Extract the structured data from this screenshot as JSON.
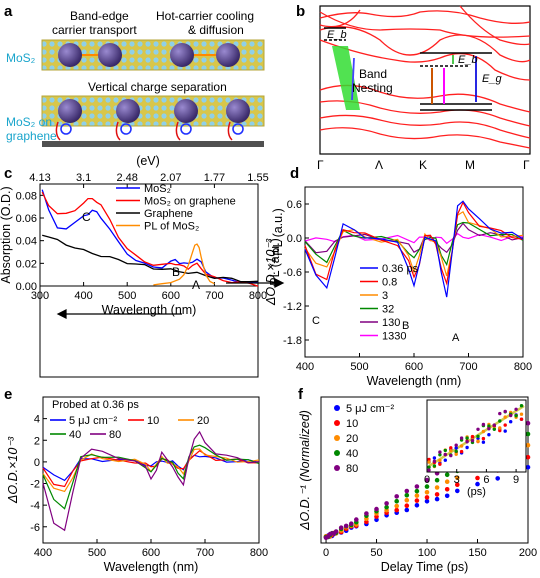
{
  "panels": {
    "a": {
      "letter": "a",
      "top_label_1_line1": "Band-edge",
      "top_label_1_line2": "carrier transport",
      "top_label_2_line1": "Hot-carrier cooling",
      "top_label_2_line2": "& diffusion",
      "side_label_1": "MoS₂",
      "middle_label": "Vertical charge separation",
      "side_label_2_line1": "MoS₂ on",
      "side_label_2_line2": "graphene"
    },
    "b": {
      "letter": "b",
      "nesting_line1": "Band",
      "nesting_line2": "Nesting",
      "eb": "E_b",
      "eg": "E_g",
      "kpoints": [
        "Γ",
        "Λ",
        "K",
        "M",
        "Γ"
      ]
    },
    "c": {
      "letter": "c",
      "annot_A": "A",
      "annot_B": "B",
      "annot_C": "C"
    },
    "d": {
      "letter": "d",
      "annot_A": "A",
      "annot_B": "B",
      "annot_C": "C"
    },
    "e": {
      "letter": "e",
      "probe_text": "Probed at 0.36 ps"
    },
    "f": {
      "letter": "f"
    }
  },
  "colors": {
    "red": "#ff0000",
    "blue": "#0000ff",
    "black": "#000000",
    "orange": "#ff8c00",
    "green": "#008800",
    "purple": "#800080",
    "magenta": "#ff00ff",
    "band_green": "#33dd33"
  },
  "chart_data": [
    {
      "type": "line",
      "id": "c",
      "xlabel": "Wavelength (nm)",
      "ylabel": "Absorption (O.D.)",
      "ylabel_right": "PL (a.u.)",
      "top_axis_label": "(eV)",
      "top_ticks": [
        "4.13",
        "3.1",
        "2.48",
        "2.07",
        "1.77",
        "1.55"
      ],
      "xlim": [
        300,
        800
      ],
      "ylim": [
        0,
        0.09
      ],
      "xticks": [
        300,
        400,
        500,
        600,
        700,
        800
      ],
      "yticks": [
        0.0,
        0.02,
        0.04,
        0.06,
        0.08
      ],
      "ytick_labels": [
        "0.00",
        "0.02",
        "0.04",
        "0.06",
        "0.08"
      ],
      "legend": "top-right",
      "series": [
        {
          "name": "MoS₂",
          "color": "#0000ff",
          "x": [
            305,
            320,
            340,
            360,
            380,
            400,
            410,
            420,
            430,
            440,
            460,
            480,
            500,
            520,
            540,
            560,
            580,
            600,
            610,
            620,
            630,
            640,
            650,
            660,
            670,
            680,
            700,
            720,
            740,
            760,
            780,
            800
          ],
          "y": [
            0.085,
            0.066,
            0.052,
            0.051,
            0.055,
            0.062,
            0.064,
            0.066,
            0.065,
            0.061,
            0.05,
            0.038,
            0.029,
            0.023,
            0.019,
            0.017,
            0.017,
            0.021,
            0.023,
            0.021,
            0.02,
            0.019,
            0.022,
            0.024,
            0.02,
            0.013,
            0.008,
            0.006,
            0.005,
            0.004,
            0.003,
            0.002
          ]
        },
        {
          "name": "MoS₂ on graphene",
          "color": "#ff0000",
          "x": [
            305,
            320,
            340,
            360,
            380,
            400,
            410,
            420,
            430,
            440,
            460,
            480,
            500,
            520,
            540,
            560,
            580,
            600,
            610,
            620,
            630,
            640,
            650,
            660,
            670,
            680,
            700,
            720,
            740,
            760,
            780,
            800
          ],
          "y": [
            0.082,
            0.072,
            0.064,
            0.063,
            0.067,
            0.074,
            0.076,
            0.077,
            0.075,
            0.071,
            0.058,
            0.044,
            0.033,
            0.026,
            0.022,
            0.019,
            0.018,
            0.02,
            0.02,
            0.018,
            0.017,
            0.016,
            0.018,
            0.019,
            0.016,
            0.011,
            0.007,
            0.005,
            0.004,
            0.003,
            0.002,
            0.001
          ]
        },
        {
          "name": "Graphene",
          "color": "#000000",
          "x": [
            305,
            320,
            340,
            360,
            380,
            400,
            420,
            440,
            460,
            480,
            500,
            520,
            540,
            560,
            580,
            600,
            620,
            640,
            660,
            680,
            700,
            720,
            740,
            760,
            780,
            800
          ],
          "y": [
            0.046,
            0.043,
            0.04,
            0.037,
            0.034,
            0.031,
            0.029,
            0.027,
            0.025,
            0.023,
            0.021,
            0.019,
            0.018,
            0.016,
            0.015,
            0.014,
            0.013,
            0.012,
            0.011,
            0.009,
            0.008,
            0.007,
            0.006,
            0.005,
            0.004,
            0.003
          ]
        },
        {
          "name": "PL of MoS₂",
          "color": "#ff8c00",
          "x": [
            560,
            580,
            600,
            620,
            630,
            640,
            650,
            655,
            660,
            665,
            670,
            680,
            690,
            700
          ],
          "y": [
            0.001,
            0.002,
            0.003,
            0.006,
            0.01,
            0.018,
            0.03,
            0.036,
            0.037,
            0.034,
            0.025,
            0.01,
            0.004,
            0.002
          ]
        }
      ]
    },
    {
      "type": "line",
      "id": "d",
      "xlabel": "Wavelength (nm)",
      "ylabel": "ΔO.D.×10⁻³",
      "xlim": [
        400,
        800
      ],
      "ylim": [
        -2.1,
        0.9
      ],
      "xticks": [
        400,
        500,
        600,
        700,
        800
      ],
      "yticks": [
        0.6,
        0,
        -0.6,
        -1.2,
        -1.8
      ],
      "ytick_labels": [
        "0.6",
        "0.0",
        "-0.6",
        "-1.2",
        "-1.8"
      ],
      "legend": "center",
      "series": [
        {
          "name": "0.36 ps",
          "color": "#0000ff",
          "amp": 1.0
        },
        {
          "name": "0.8",
          "color": "#ff0000",
          "amp": 0.85
        },
        {
          "name": "3",
          "color": "#ff8c00",
          "amp": 0.65
        },
        {
          "name": "32",
          "color": "#008800",
          "amp": 0.45
        },
        {
          "name": "130",
          "color": "#800080",
          "amp": 0.3
        },
        {
          "name": "1330",
          "color": "#ff00ff",
          "amp": 0.05
        }
      ],
      "base": {
        "x": [
          400,
          420,
          440,
          455,
          470,
          490,
          510,
          540,
          570,
          590,
          600,
          610,
          620,
          630,
          640,
          650,
          660,
          670,
          680,
          690,
          700,
          720,
          740,
          760,
          780,
          800
        ],
        "y": [
          -0.2,
          -0.7,
          -0.85,
          -0.3,
          0.2,
          0.15,
          0.05,
          -0.05,
          -0.1,
          -0.5,
          -0.85,
          -0.5,
          0.05,
          0.0,
          -0.1,
          -0.6,
          -1.0,
          -0.3,
          0.55,
          0.7,
          0.5,
          0.3,
          0.2,
          0.1,
          0.05,
          0.0
        ]
      }
    },
    {
      "type": "line",
      "id": "e",
      "xlabel": "Wavelength (nm)",
      "ylabel": "ΔO.D.×10⁻³",
      "xlim": [
        400,
        800
      ],
      "ylim": [
        -7.5,
        6
      ],
      "xticks": [
        400,
        500,
        600,
        700,
        800
      ],
      "yticks": [
        4,
        2,
        0,
        -2,
        -4,
        -6
      ],
      "ytick_labels": [
        "4",
        "2",
        "0",
        "-2",
        "-4",
        "-6"
      ],
      "legend": "top",
      "series": [
        {
          "name": "5 μJ cm⁻²",
          "color": "#0000ff",
          "amp": 0.25
        },
        {
          "name": "10",
          "color": "#ff0000",
          "amp": 0.35
        },
        {
          "name": "20",
          "color": "#ff8c00",
          "amp": 0.45
        },
        {
          "name": "40",
          "color": "#008800",
          "amp": 0.65
        },
        {
          "name": "80",
          "color": "#800080",
          "amp": 1.0
        }
      ],
      "base": {
        "x": [
          400,
          420,
          440,
          455,
          470,
          490,
          510,
          540,
          570,
          590,
          600,
          610,
          620,
          630,
          640,
          650,
          660,
          670,
          680,
          690,
          700,
          720,
          740,
          760,
          780,
          800
        ],
        "y": [
          -2.0,
          -5.5,
          -6.4,
          -3.0,
          0.5,
          1.2,
          0.8,
          0.4,
          0.2,
          -0.6,
          -1.6,
          -0.6,
          0.8,
          0.1,
          -0.3,
          -1.4,
          -2.3,
          0.4,
          2.2,
          2.6,
          1.8,
          0.9,
          0.5,
          0.3,
          0.1,
          0.0
        ]
      }
    },
    {
      "type": "scatter",
      "id": "f",
      "xlabel": "Delay Time (ps)",
      "ylabel": "ΔO.D.⁻¹ (Normalized)",
      "xlim": [
        -5,
        200
      ],
      "ylim": [
        0,
        25
      ],
      "xticks": [
        0,
        50,
        100,
        150,
        200
      ],
      "legend": "top-left",
      "series": [
        {
          "name": "5 μJ cm⁻²",
          "color": "#0000ff",
          "slope": 0.06
        },
        {
          "name": "10",
          "color": "#ff0000",
          "slope": 0.068
        },
        {
          "name": "20",
          "color": "#ff8c00",
          "slope": 0.078
        },
        {
          "name": "40",
          "color": "#008800",
          "slope": 0.088
        },
        {
          "name": "80",
          "color": "#800080",
          "slope": 0.098
        }
      ],
      "x": [
        0,
        2,
        4,
        6,
        8,
        10,
        15,
        20,
        25,
        30,
        40,
        50,
        60,
        70,
        80,
        90,
        100,
        110,
        120,
        130,
        150,
        170,
        200
      ],
      "inset": {
        "xlim": [
          0,
          10
        ],
        "xticks": [
          0,
          3,
          6,
          9
        ],
        "xlabel": "(ps)"
      }
    }
  ]
}
